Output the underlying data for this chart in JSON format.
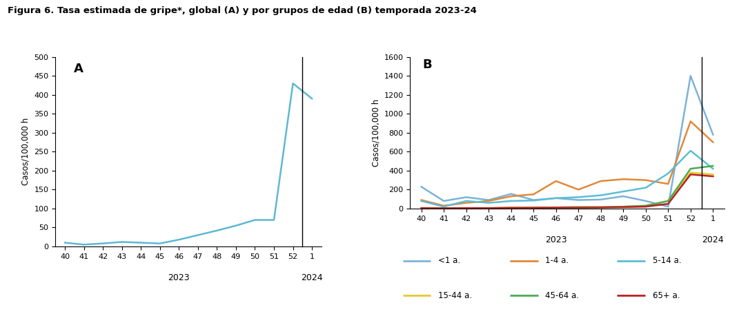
{
  "title": "Figura 6. Tasa estimada de gripe*, global (A) y por grupos de edad (B) temporada 2023-24",
  "weeks": [
    40,
    41,
    42,
    43,
    44,
    45,
    46,
    47,
    48,
    49,
    50,
    51,
    52,
    1
  ],
  "global_A": [
    10,
    5,
    8,
    12,
    10,
    8,
    18,
    30,
    42,
    55,
    70,
    70,
    430,
    390
  ],
  "ylabel_A": "Casos/100,000 h",
  "yticks_A": [
    0,
    50,
    100,
    150,
    200,
    250,
    300,
    350,
    400,
    450,
    500
  ],
  "ylim_A": [
    0,
    500
  ],
  "color_A": "#5bb8d4",
  "label_A": "A",
  "series_B": {
    "lt1": [
      230,
      80,
      120,
      90,
      155,
      90,
      110,
      90,
      95,
      130,
      80,
      20,
      1400,
      780
    ],
    "1_4": [
      90,
      30,
      60,
      80,
      130,
      150,
      290,
      200,
      290,
      310,
      300,
      260,
      920,
      700
    ],
    "5_14": [
      80,
      20,
      80,
      60,
      80,
      85,
      110,
      120,
      140,
      180,
      220,
      370,
      610,
      420
    ],
    "15_44": [
      5,
      3,
      5,
      5,
      8,
      10,
      12,
      15,
      15,
      20,
      30,
      80,
      380,
      360
    ],
    "45_64": [
      5,
      3,
      5,
      5,
      8,
      10,
      12,
      15,
      15,
      20,
      30,
      80,
      420,
      450
    ],
    "65plus": [
      5,
      3,
      5,
      5,
      8,
      8,
      10,
      10,
      12,
      15,
      20,
      50,
      360,
      340
    ]
  },
  "colors_B": {
    "lt1": "#7ab3d9",
    "1_4": "#e0883a",
    "5_14": "#5bbdd4",
    "15_44": "#e8c830",
    "45_64": "#4aaa54",
    "65plus": "#b82020"
  },
  "labels_B": {
    "lt1": "<1 a.",
    "1_4": "1-4 a.",
    "5_14": "5-14 a.",
    "15_44": "15-44 a.",
    "45_64": "45-64 a.",
    "65plus": "65+ a."
  },
  "ylabel_B": "Casos/100,000 h",
  "yticks_B": [
    0,
    200,
    400,
    600,
    800,
    1000,
    1200,
    1400,
    1600
  ],
  "ylim_B": [
    0,
    1600
  ],
  "label_B": "B",
  "year_label_2023": "2023",
  "year_label_2024": "2024"
}
